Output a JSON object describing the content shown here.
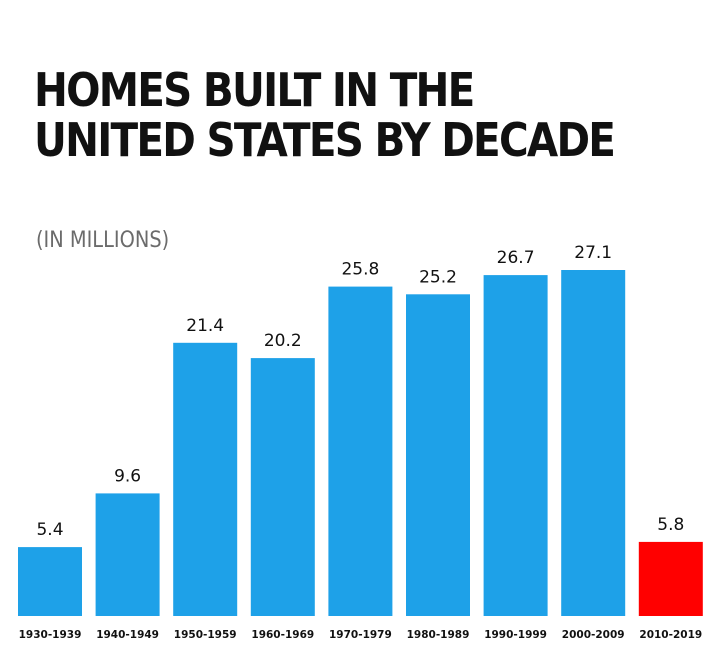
{
  "chart_data": {
    "type": "bar",
    "title": "HOMES BUILT IN THE UNITED STATES BY DECADE",
    "title_lines": [
      "HOMES BUILT IN THE",
      "UNITED STATES BY DECADE"
    ],
    "subtitle": "(IN MILLIONS)",
    "categories": [
      "1930-1939",
      "1940-1949",
      "1950-1959",
      "1960-1969",
      "1970-1979",
      "1980-1989",
      "1990-1999",
      "2000-2009",
      "2010-2019"
    ],
    "values": [
      5.4,
      9.6,
      21.4,
      20.2,
      25.8,
      25.2,
      26.7,
      27.1,
      5.8
    ],
    "value_labels": [
      "5.4",
      "9.6",
      "21.4",
      "20.2",
      "25.8",
      "25.2",
      "26.7",
      "27.1",
      "5.8"
    ],
    "xlabel": "",
    "ylabel": "",
    "ylim": [
      0,
      30
    ],
    "grid": false,
    "colors": {
      "default_bar": "#1ea1e8",
      "highlight_bar": "#ff0000",
      "highlight_category": "2010-2019",
      "title": "#111111",
      "subtitle": "#6b6b6b"
    }
  }
}
